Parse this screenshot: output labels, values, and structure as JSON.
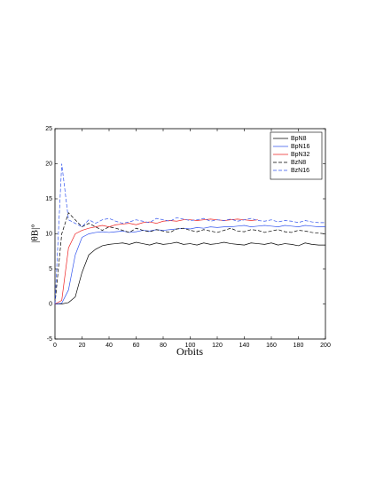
{
  "chart_data": {
    "type": "line",
    "xlabel": "Orbits",
    "ylabel": "|θB|°",
    "x": [
      0,
      5,
      10,
      15,
      20,
      25,
      30,
      35,
      40,
      45,
      50,
      55,
      60,
      65,
      70,
      75,
      80,
      85,
      90,
      95,
      100,
      105,
      110,
      115,
      120,
      125,
      130,
      135,
      140,
      145,
      150,
      155,
      160,
      165,
      170,
      175,
      180,
      185,
      190,
      195,
      200
    ],
    "series": [
      {
        "name": "BpN8",
        "color": "#000000",
        "dash": false,
        "values": [
          0,
          0,
          0.2,
          1,
          4.5,
          7,
          7.8,
          8.3,
          8.5,
          8.6,
          8.7,
          8.5,
          8.8,
          8.6,
          8.4,
          8.7,
          8.5,
          8.6,
          8.8,
          8.5,
          8.6,
          8.4,
          8.7,
          8.5,
          8.6,
          8.8,
          8.6,
          8.5,
          8.4,
          8.7,
          8.6,
          8.5,
          8.7,
          8.4,
          8.6,
          8.5,
          8.3,
          8.7,
          8.5,
          8.4,
          8.4
        ]
      },
      {
        "name": "BpN16",
        "color": "#3355ee",
        "dash": false,
        "values": [
          0,
          0.1,
          2,
          7,
          9.5,
          10,
          10.2,
          10.3,
          10.2,
          10.3,
          10.4,
          10.2,
          10.3,
          10.5,
          10.4,
          10.6,
          10.5,
          10.6,
          10.7,
          10.8,
          10.7,
          10.9,
          10.8,
          11,
          10.9,
          11,
          11,
          11.1,
          11.2,
          11,
          11.1,
          11.2,
          11.1,
          11,
          11.2,
          11.1,
          11,
          11.2,
          11.1,
          11,
          11
        ]
      },
      {
        "name": "BpN32",
        "color": "#ee2222",
        "dash": false,
        "values": [
          0,
          0.5,
          8,
          10,
          10.5,
          10.8,
          11,
          11.2,
          11,
          11.3,
          11.4,
          11.5,
          11.3,
          11.6,
          11.7,
          11.5,
          11.8,
          11.9,
          11.8,
          12,
          12,
          11.9,
          12,
          12.1,
          12,
          11.9,
          12,
          12.1,
          12,
          11.9,
          12,
          null,
          null,
          null,
          null,
          null,
          null,
          null,
          null,
          null,
          null
        ]
      },
      {
        "name": "BzN8",
        "color": "#000000",
        "dash": true,
        "values": [
          0,
          10,
          13,
          12,
          11,
          11.5,
          11,
          10.5,
          11,
          10.8,
          10.5,
          10.2,
          10.8,
          10.5,
          10.3,
          10.6,
          10.4,
          10.2,
          10.7,
          10.8,
          10.5,
          10.3,
          10.6,
          10.4,
          10.2,
          10.5,
          10.8,
          10.4,
          10.3,
          10.6,
          10.5,
          10.2,
          10.4,
          10.6,
          10.3,
          10.2,
          10.5,
          10.4,
          10.2,
          10.1,
          10
        ]
      },
      {
        "name": "BzN16",
        "color": "#3355ee",
        "dash": true,
        "values": [
          0,
          20,
          12,
          11.5,
          11,
          12,
          11.5,
          12,
          12.2,
          11.8,
          11.5,
          11.7,
          12,
          11.8,
          11.6,
          12.2,
          12,
          11.8,
          12.3,
          12.1,
          11.9,
          12,
          12.2,
          11.8,
          12,
          11.9,
          12.1,
          11.8,
          12,
          12.2,
          11.9,
          11.8,
          12,
          11.7,
          11.9,
          11.8,
          11.6,
          11.9,
          11.7,
          11.6,
          11.6
        ]
      }
    ],
    "xlim": [
      0,
      200
    ],
    "xticks": [
      0,
      20,
      40,
      60,
      80,
      100,
      120,
      140,
      160,
      180,
      200
    ],
    "ylim": [
      -5,
      25
    ],
    "yticks": [
      -5,
      0,
      5,
      10,
      15,
      20,
      25
    ],
    "legend": "upper right"
  }
}
